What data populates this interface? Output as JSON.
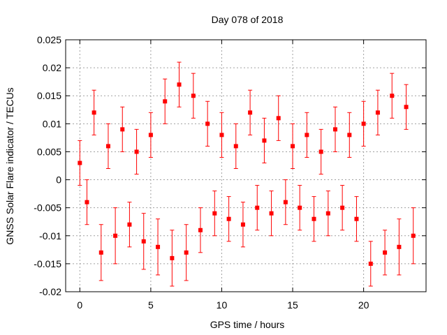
{
  "chart_data": {
    "type": "scatter",
    "title": "Day 078 of 2018",
    "xlabel": "GPS time / hours",
    "ylabel": "GNSS Solar Flare indicator / TECUs",
    "xlim": [
      -1,
      24.4
    ],
    "ylim": [
      -0.02,
      0.025
    ],
    "xticks": [
      {
        "value": 0,
        "label": "0"
      },
      {
        "value": 5,
        "label": "5"
      },
      {
        "value": 10,
        "label": "10"
      },
      {
        "value": 15,
        "label": "15"
      },
      {
        "value": 20,
        "label": "20"
      }
    ],
    "yticks": [
      {
        "value": -0.02,
        "label": "-0.02"
      },
      {
        "value": -0.015,
        "label": "-0.015"
      },
      {
        "value": -0.01,
        "label": "-0.01"
      },
      {
        "value": -0.005,
        "label": "-0.005"
      },
      {
        "value": 0,
        "label": "0"
      },
      {
        "value": 0.005,
        "label": "0.005"
      },
      {
        "value": 0.01,
        "label": "0.01"
      },
      {
        "value": 0.015,
        "label": "0.015"
      },
      {
        "value": 0.02,
        "label": "0.02"
      },
      {
        "value": 0.025,
        "label": "0.025"
      }
    ],
    "grid": true,
    "series": [
      {
        "name": "solar flare indicator",
        "color": "#ff0000",
        "marker": "square",
        "error_bars": true,
        "x": [
          0.0,
          0.5,
          1.0,
          1.5,
          2.0,
          2.5,
          3.0,
          3.5,
          4.0,
          4.5,
          5.0,
          5.5,
          6.0,
          6.5,
          7.0,
          7.5,
          8.0,
          8.5,
          9.0,
          9.5,
          10.0,
          10.5,
          11.0,
          11.5,
          12.0,
          12.5,
          13.0,
          13.5,
          14.0,
          14.5,
          15.0,
          15.5,
          16.0,
          16.5,
          17.0,
          17.5,
          18.0,
          18.5,
          19.0,
          19.5,
          20.0,
          20.5,
          21.0,
          21.5,
          22.0,
          22.5,
          23.0,
          23.5
        ],
        "y": [
          0.003,
          -0.004,
          0.012,
          -0.013,
          0.006,
          -0.01,
          0.009,
          -0.008,
          0.005,
          -0.011,
          0.008,
          -0.012,
          0.014,
          -0.014,
          0.017,
          -0.013,
          0.015,
          -0.009,
          0.01,
          -0.006,
          0.008,
          -0.007,
          0.006,
          -0.008,
          0.012,
          -0.005,
          0.007,
          -0.006,
          0.011,
          -0.004,
          0.006,
          -0.005,
          0.008,
          -0.007,
          0.005,
          -0.006,
          0.009,
          -0.005,
          0.008,
          -0.007,
          0.01,
          -0.015,
          0.012,
          -0.013,
          0.015,
          -0.012,
          0.013,
          -0.01
        ],
        "y_err": [
          0.004,
          0.004,
          0.004,
          0.005,
          0.004,
          0.005,
          0.004,
          0.004,
          0.004,
          0.005,
          0.004,
          0.005,
          0.004,
          0.005,
          0.004,
          0.005,
          0.004,
          0.004,
          0.004,
          0.004,
          0.004,
          0.004,
          0.004,
          0.004,
          0.004,
          0.004,
          0.004,
          0.004,
          0.004,
          0.004,
          0.004,
          0.004,
          0.004,
          0.004,
          0.004,
          0.004,
          0.004,
          0.004,
          0.004,
          0.004,
          0.004,
          0.004,
          0.004,
          0.004,
          0.004,
          0.005,
          0.004,
          0.005
        ]
      }
    ]
  }
}
